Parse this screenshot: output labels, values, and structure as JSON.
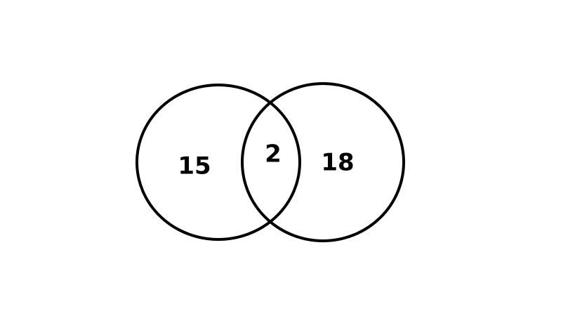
{
  "venn": {
    "left_only": "15",
    "intersection": "2",
    "right_only": "18",
    "colors": {
      "stroke": "#000000",
      "text": "#000000",
      "background": "#ffffff"
    }
  }
}
